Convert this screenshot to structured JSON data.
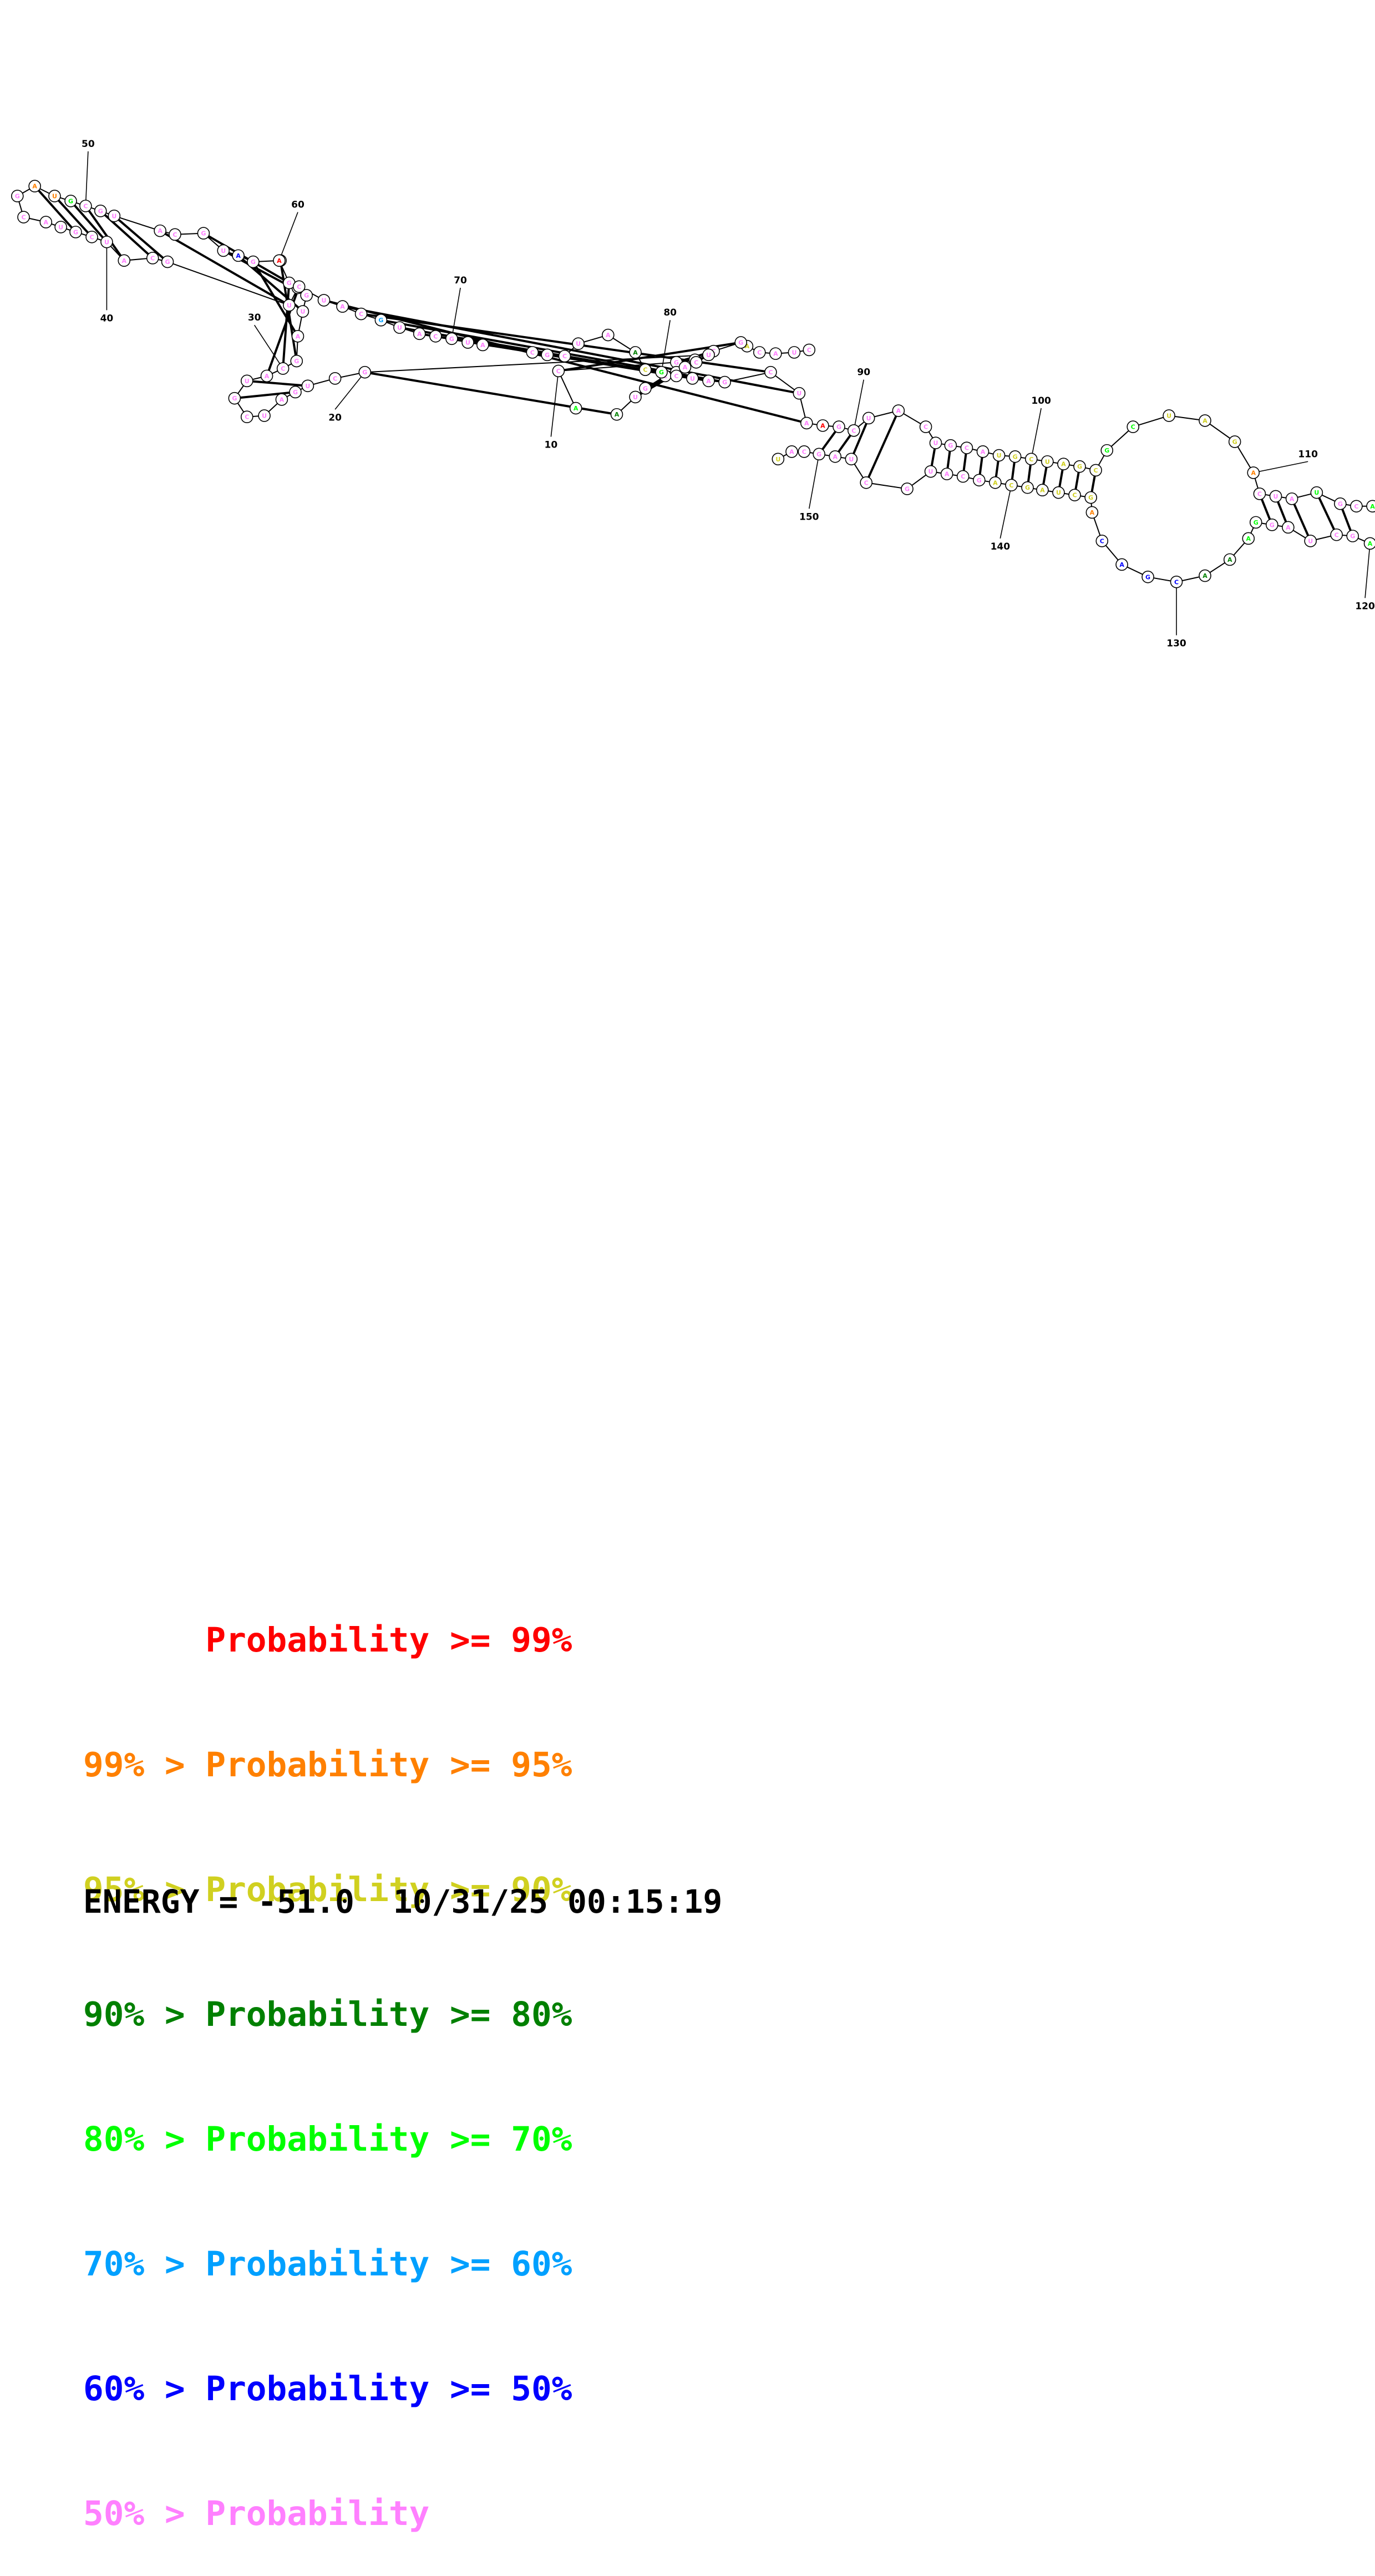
{
  "structure": {
    "nucleotides": [
      {
        "n": 1,
        "c": "Pink",
        "l": "C"
      },
      {
        "n": 2,
        "c": "Pink",
        "l": "U"
      },
      {
        "n": 3,
        "c": "Pink",
        "l": "A"
      },
      {
        "n": 4,
        "c": "Pink",
        "l": "C"
      },
      {
        "n": 5,
        "c": "Yellow",
        "l": "A"
      },
      {
        "n": 6,
        "c": "Pink",
        "l": "G"
      },
      {
        "n": 7,
        "c": "Pink",
        "l": "C"
      },
      {
        "n": 8,
        "c": "Pink",
        "l": "U"
      },
      {
        "n": 9,
        "c": "Pink",
        "l": "G"
      },
      {
        "n": 10,
        "c": "Pink",
        "l": "C"
      },
      {
        "n": 11,
        "c": "Lime",
        "l": "A"
      },
      {
        "n": 12,
        "c": "DarkGreen",
        "l": "A"
      },
      {
        "n": 13,
        "c": "Pink",
        "l": "U"
      },
      {
        "n": 14,
        "c": "Pink",
        "l": "G"
      },
      {
        "n": 15,
        "c": "Pink",
        "l": "C"
      },
      {
        "n": 16,
        "c": "Pink",
        "l": "U"
      },
      {
        "n": 17,
        "c": "Pink",
        "l": "A"
      },
      {
        "n": 18,
        "c": "Pink",
        "l": "C"
      },
      {
        "n": 19,
        "c": "Pink",
        "l": "U"
      },
      {
        "n": 20,
        "c": "Pink",
        "l": "G"
      },
      {
        "n": 21,
        "c": "Pink",
        "l": "C"
      },
      {
        "n": 22,
        "c": "Pink",
        "l": "U"
      },
      {
        "n": 23,
        "c": "Pink",
        "l": "G"
      },
      {
        "n": 24,
        "c": "Pink",
        "l": "A"
      },
      {
        "n": 25,
        "c": "Pink",
        "l": "U"
      },
      {
        "n": 26,
        "c": "Pink",
        "l": "C"
      },
      {
        "n": 27,
        "c": "Pink",
        "l": "G"
      },
      {
        "n": 28,
        "c": "Pink",
        "l": "U"
      },
      {
        "n": 29,
        "c": "Pink",
        "l": "A"
      },
      {
        "n": 30,
        "c": "Pink",
        "l": "C"
      },
      {
        "n": 31,
        "c": "Pink",
        "l": "G"
      },
      {
        "n": 32,
        "c": "Pink",
        "l": "A"
      },
      {
        "n": 33,
        "c": "Pink",
        "l": "U"
      },
      {
        "n": 34,
        "c": "Pink",
        "l": "G"
      },
      {
        "n": 35,
        "c": "Pink",
        "l": "C"
      },
      {
        "n": 36,
        "c": "Pink",
        "l": "U"
      },
      {
        "n": 37,
        "c": "Pink",
        "l": "G"
      },
      {
        "n": 38,
        "c": "Pink",
        "l": "C"
      },
      {
        "n": 39,
        "c": "Pink",
        "l": "A"
      },
      {
        "n": 40,
        "c": "Pink",
        "l": "U"
      },
      {
        "n": 41,
        "c": "Pink",
        "l": "C"
      },
      {
        "n": 42,
        "c": "Pink",
        "l": "G"
      },
      {
        "n": 43,
        "c": "Pink",
        "l": "U"
      },
      {
        "n": 44,
        "c": "Pink",
        "l": "A"
      },
      {
        "n": 45,
        "c": "Pink",
        "l": "C"
      },
      {
        "n": 46,
        "c": "Pink",
        "l": "G"
      },
      {
        "n": 47,
        "c": "Orange",
        "l": "A"
      },
      {
        "n": 48,
        "c": "Orange",
        "l": "U"
      },
      {
        "n": 49,
        "c": "Lime",
        "l": "G"
      },
      {
        "n": 50,
        "c": "Pink",
        "l": "C"
      },
      {
        "n": 51,
        "c": "Pink",
        "l": "G"
      },
      {
        "n": 52,
        "c": "Pink",
        "l": "U"
      },
      {
        "n": 53,
        "c": "Pink",
        "l": "A"
      },
      {
        "n": 54,
        "c": "Pink",
        "l": "C"
      },
      {
        "n": 55,
        "c": "Pink",
        "l": "G"
      },
      {
        "n": 56,
        "c": "Pink",
        "l": "U"
      },
      {
        "n": 57,
        "c": "Blue",
        "l": "A"
      },
      {
        "n": 58,
        "c": "Pink",
        "l": "G"
      },
      {
        "n": 59,
        "c": "Pink",
        "l": "C"
      },
      {
        "n": 60,
        "c": "Red",
        "l": "A"
      },
      {
        "n": 61,
        "c": "Pink",
        "l": "G"
      },
      {
        "n": 62,
        "c": "Pink",
        "l": "C"
      },
      {
        "n": 63,
        "c": "Pink",
        "l": "U"
      },
      {
        "n": 64,
        "c": "Pink",
        "l": "A"
      },
      {
        "n": 65,
        "c": "Pink",
        "l": "C"
      },
      {
        "n": 66,
        "c": "Cyan",
        "l": "G"
      },
      {
        "n": 67,
        "c": "Pink",
        "l": "U"
      },
      {
        "n": 68,
        "c": "Pink",
        "l": "A"
      },
      {
        "n": 69,
        "c": "Pink",
        "l": "C"
      },
      {
        "n": 70,
        "c": "Pink",
        "l": "G"
      },
      {
        "n": 71,
        "c": "Pink",
        "l": "U"
      },
      {
        "n": 72,
        "c": "Pink",
        "l": "A"
      },
      {
        "n": 73,
        "c": "Pink",
        "l": "C"
      },
      {
        "n": 74,
        "c": "Pink",
        "l": "G"
      },
      {
        "n": 75,
        "c": "Pink",
        "l": "C"
      },
      {
        "n": 76,
        "c": "Pink",
        "l": "U"
      },
      {
        "n": 77,
        "c": "Pink",
        "l": "A"
      },
      {
        "n": 78,
        "c": "DarkGreen",
        "l": "A"
      },
      {
        "n": 79,
        "c": "Yellow",
        "l": "C"
      },
      {
        "n": 80,
        "c": "Lime",
        "l": "G"
      },
      {
        "n": 81,
        "c": "Pink",
        "l": "C"
      },
      {
        "n": 82,
        "c": "Pink",
        "l": "U"
      },
      {
        "n": 83,
        "c": "Pink",
        "l": "A"
      },
      {
        "n": 84,
        "c": "Pink",
        "l": "G"
      },
      {
        "n": 85,
        "c": "Pink",
        "l": "C"
      },
      {
        "n": 86,
        "c": "Pink",
        "l": "U"
      },
      {
        "n": 87,
        "c": "Pink",
        "l": "A"
      },
      {
        "n": 88,
        "c": "Red",
        "l": "A"
      },
      {
        "n": 89,
        "c": "Pink",
        "l": "G"
      },
      {
        "n": 90,
        "c": "Pink",
        "l": "C"
      },
      {
        "n": 91,
        "c": "Pink",
        "l": "U"
      },
      {
        "n": 92,
        "c": "Pink",
        "l": "A"
      },
      {
        "n": 93,
        "c": "Pink",
        "l": "C"
      },
      {
        "n": 94,
        "c": "Pink",
        "l": "U"
      },
      {
        "n": 95,
        "c": "Pink",
        "l": "G"
      },
      {
        "n": 96,
        "c": "Pink",
        "l": "C"
      },
      {
        "n": 97,
        "c": "Pink",
        "l": "A"
      },
      {
        "n": 98,
        "c": "Yellow",
        "l": "U"
      },
      {
        "n": 99,
        "c": "Yellow",
        "l": "G"
      },
      {
        "n": 100,
        "c": "Yellow",
        "l": "C"
      },
      {
        "n": 101,
        "c": "Yellow",
        "l": "U"
      },
      {
        "n": 102,
        "c": "Yellow",
        "l": "A"
      },
      {
        "n": 103,
        "c": "Yellow",
        "l": "G"
      },
      {
        "n": 104,
        "c": "Yellow",
        "l": "C"
      },
      {
        "n": 105,
        "c": "Lime",
        "l": "G"
      },
      {
        "n": 106,
        "c": "Lime",
        "l": "C"
      },
      {
        "n": 107,
        "c": "Yellow",
        "l": "U"
      },
      {
        "n": 108,
        "c": "Yellow",
        "l": "A"
      },
      {
        "n": 109,
        "c": "Yellow",
        "l": "G"
      },
      {
        "n": 110,
        "c": "Orange",
        "l": "A"
      },
      {
        "n": 111,
        "c": "Pink",
        "l": "C"
      },
      {
        "n": 112,
        "c": "Pink",
        "l": "U"
      },
      {
        "n": 113,
        "c": "Pink",
        "l": "A"
      },
      {
        "n": 114,
        "c": "Lime",
        "l": "U"
      },
      {
        "n": 115,
        "c": "Pink",
        "l": "G"
      },
      {
        "n": 116,
        "c": "Pink",
        "l": "C"
      },
      {
        "n": 117,
        "c": "Lime",
        "l": "A"
      },
      {
        "n": 118,
        "c": "Pink",
        "l": "G"
      },
      {
        "n": 119,
        "c": "Pink",
        "l": "C"
      },
      {
        "n": 120,
        "c": "Lime",
        "l": "A"
      },
      {
        "n": 121,
        "c": "Pink",
        "l": "G"
      },
      {
        "n": 122,
        "c": "Pink",
        "l": "C"
      },
      {
        "n": 123,
        "c": "Pink",
        "l": "U"
      },
      {
        "n": 124,
        "c": "Pink",
        "l": "A"
      },
      {
        "n": 125,
        "c": "Pink",
        "l": "G"
      },
      {
        "n": 126,
        "c": "Lime",
        "l": "G"
      },
      {
        "n": 127,
        "c": "Lime",
        "l": "A"
      },
      {
        "n": 128,
        "c": "DarkGreen",
        "l": "A"
      },
      {
        "n": 129,
        "c": "DarkGreen",
        "l": "A"
      },
      {
        "n": 130,
        "c": "Blue",
        "l": "C"
      },
      {
        "n": 131,
        "c": "Blue",
        "l": "G"
      },
      {
        "n": 132,
        "c": "Blue",
        "l": "A"
      },
      {
        "n": 133,
        "c": "Blue",
        "l": "C"
      },
      {
        "n": 134,
        "c": "Orange",
        "l": "A"
      },
      {
        "n": 135,
        "c": "Yellow",
        "l": "G"
      },
      {
        "n": 136,
        "c": "Yellow",
        "l": "C"
      },
      {
        "n": 137,
        "c": "Yellow",
        "l": "U"
      },
      {
        "n": 138,
        "c": "Yellow",
        "l": "A"
      },
      {
        "n": 139,
        "c": "Yellow",
        "l": "G"
      },
      {
        "n": 140,
        "c": "Yellow",
        "l": "C"
      },
      {
        "n": 141,
        "c": "Yellow",
        "l": "A"
      },
      {
        "n": 142,
        "c": "Pink",
        "l": "G"
      },
      {
        "n": 143,
        "c": "Pink",
        "l": "C"
      },
      {
        "n": 144,
        "c": "Pink",
        "l": "A"
      },
      {
        "n": 145,
        "c": "Pink",
        "l": "U"
      },
      {
        "n": 146,
        "c": "Pink",
        "l": "G"
      },
      {
        "n": 147,
        "c": "Pink",
        "l": "C"
      },
      {
        "n": 148,
        "c": "Pink",
        "l": "U"
      },
      {
        "n": 149,
        "c": "Pink",
        "l": "A"
      },
      {
        "n": 150,
        "c": "Pink",
        "l": "G"
      },
      {
        "n": 151,
        "c": "Pink",
        "l": "C"
      },
      {
        "n": 152,
        "c": "Pink",
        "l": "A"
      },
      {
        "n": 153,
        "c": "Yellow",
        "l": "U"
      }
    ],
    "pairs": [
      [
        6,
        10
      ],
      [
        7,
        9
      ],
      [
        12,
        20
      ],
      [
        13,
        19
      ],
      [
        14,
        18
      ],
      [
        15,
        17
      ],
      [
        22,
        28
      ],
      [
        23,
        27
      ],
      [
        29,
        62
      ],
      [
        30,
        61
      ],
      [
        31,
        59
      ],
      [
        32,
        58
      ],
      [
        33,
        57
      ],
      [
        34,
        56
      ],
      [
        35,
        55
      ],
      [
        36,
        53
      ],
      [
        37,
        52
      ],
      [
        38,
        51
      ],
      [
        39,
        50
      ],
      [
        40,
        49
      ],
      [
        41,
        48
      ],
      [
        42,
        47
      ],
      [
        63,
        87
      ],
      [
        64,
        86
      ],
      [
        65,
        85
      ],
      [
        66,
        84
      ],
      [
        67,
        83
      ],
      [
        68,
        82
      ],
      [
        69,
        81
      ],
      [
        89,
        150
      ],
      [
        90,
        149
      ],
      [
        91,
        148
      ],
      [
        92,
        147
      ],
      [
        94,
        145
      ],
      [
        95,
        144
      ],
      [
        96,
        143
      ],
      [
        97,
        142
      ],
      [
        98,
        141
      ],
      [
        99,
        140
      ],
      [
        100,
        139
      ],
      [
        101,
        138
      ],
      [
        102,
        137
      ],
      [
        103,
        136
      ],
      [
        104,
        135
      ],
      [
        111,
        125
      ],
      [
        112,
        124
      ],
      [
        113,
        123
      ],
      [
        114,
        122
      ],
      [
        115,
        121
      ]
    ],
    "number_labels": [
      "10",
      "20",
      "30",
      "40",
      "50",
      "60",
      "70",
      "80",
      "90",
      "100",
      "110",
      "120",
      "130",
      "140",
      "150"
    ],
    "colors": {
      "Red": "#ff0000",
      "Orange": "#ff8000",
      "Yellow": "#d0d020",
      "DarkGreen": "#008000",
      "Lime": "#00ff00",
      "Cyan": "#00a0ff",
      "Blue": "#0000ff",
      "Pink": "#ff80ff"
    }
  },
  "legend": [
    {
      "text": "      Probability >= 99%",
      "color": "#ff0000"
    },
    {
      "text": "99% > Probability >= 95%",
      "color": "#ff8000"
    },
    {
      "text": "95% > Probability >= 90%",
      "color": "#d0d020"
    },
    {
      "text": "90% > Probability >= 80%",
      "color": "#008000"
    },
    {
      "text": "80% > Probability >= 70%",
      "color": "#00ff00"
    },
    {
      "text": "70% > Probability >= 60%",
      "color": "#00a0ff"
    },
    {
      "text": "60% > Probability >= 50%",
      "color": "#0000ff"
    },
    {
      "text": "50% > Probability",
      "color": "#ff80ff"
    }
  ],
  "footer": {
    "energy": "ENERGY = -51.0  10/31/25 00:15:19"
  }
}
